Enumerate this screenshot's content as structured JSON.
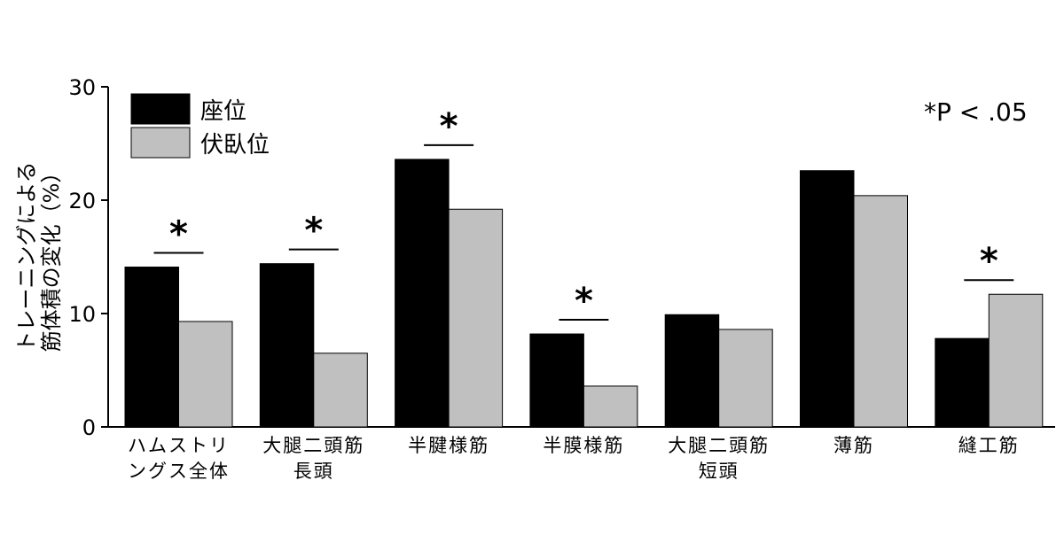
{
  "chart_data": {
    "type": "bar",
    "ylabel_lines": [
      "トレーニングによる",
      "筋体積の変化（%）"
    ],
    "ylim": [
      0,
      30
    ],
    "yticks": [
      0,
      10,
      20,
      30
    ],
    "categories": [
      [
        "ハムストリ",
        "ングス全体"
      ],
      [
        "大腿二頭筋",
        "長頭"
      ],
      [
        "半腱様筋"
      ],
      [
        "半膜様筋"
      ],
      [
        "大腿二頭筋",
        "短頭"
      ],
      [
        "薄筋"
      ],
      [
        "縫工筋"
      ]
    ],
    "series": [
      {
        "name": "座位",
        "color": "#000000",
        "values": [
          14.1,
          14.4,
          23.6,
          8.2,
          9.9,
          22.6,
          7.8
        ]
      },
      {
        "name": "伏臥位",
        "color": "#c0c0c0",
        "values": [
          9.3,
          6.5,
          19.2,
          3.6,
          8.6,
          20.4,
          11.7
        ]
      }
    ],
    "significance": {
      "marker": "*",
      "categories": [
        0,
        1,
        2,
        3,
        6
      ],
      "note": "*P < .05"
    },
    "legend_position": "top-left",
    "grid": false
  }
}
